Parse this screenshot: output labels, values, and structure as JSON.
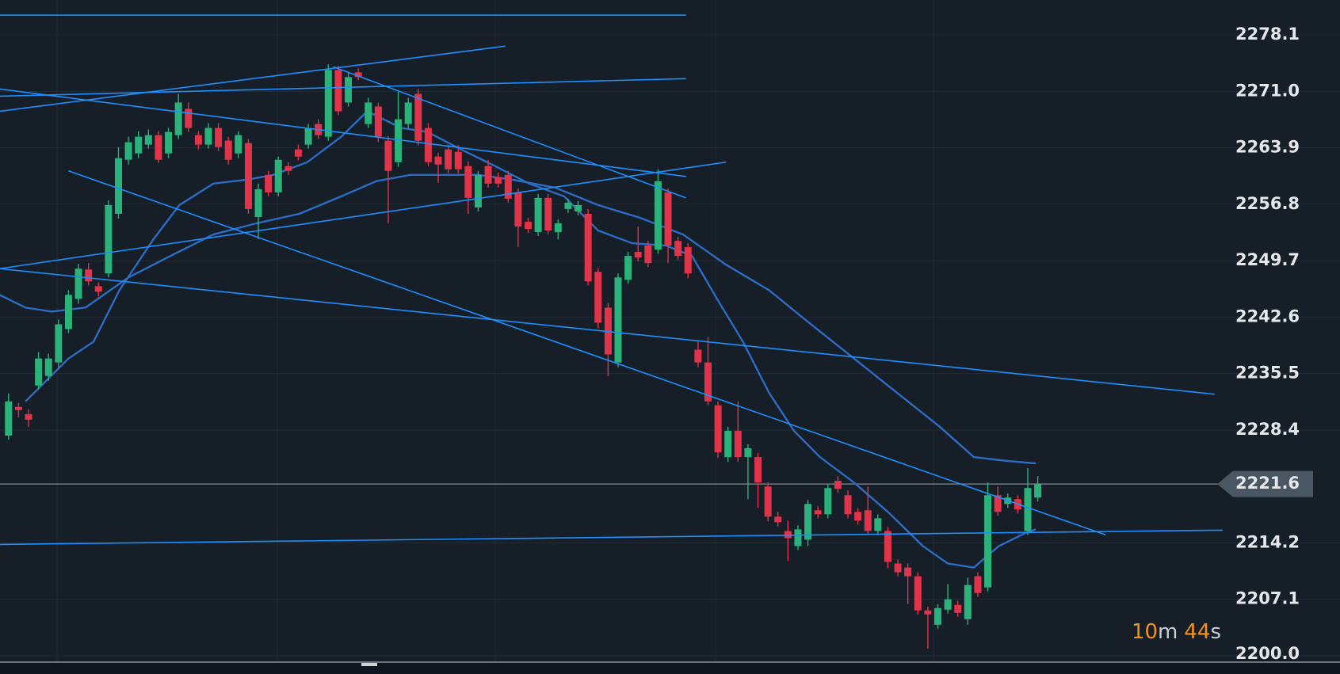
{
  "chart_data": {
    "type": "candlestick",
    "up_color": "#2bb27a",
    "down_color": "#e0344a",
    "open": [
      2227.7,
      2231.3,
      2230.4,
      2234.0,
      2235.2,
      2236.9,
      2241.1,
      2244.9,
      2248.6,
      2246.5,
      2248.1,
      2255.6,
      2262.4,
      2263.2,
      2264.3,
      2265.5,
      2263.2,
      2265.5,
      2268.8,
      2265.5,
      2264.3,
      2266.4,
      2264.8,
      2263.2,
      2264.5,
      2255.2,
      2260.5,
      2258.3,
      2261.6,
      2263.7,
      2264.3,
      2266.9,
      2265.3,
      2273.7,
      2269.6,
      2273.4,
      2266.9,
      2269.1,
      2264.8,
      2262.1,
      2266.9,
      2270.7,
      2266.4,
      2262.8,
      2263.7,
      2263.4,
      2261.6,
      2256.4,
      2261.6,
      2260.2,
      2260.5,
      2258.3,
      2254.6,
      2253.3,
      2257.6,
      2253.3,
      2256.2,
      2255.9,
      2255.6,
      2248.3,
      2243.8,
      2236.9,
      2247.3,
      2250.8,
      2251.6,
      2251.1,
      2258.3,
      2252.2,
      2251.4,
      2238.5,
      2236.9,
      2231.5,
      2225.0,
      2228.3,
      2225.0,
      2225.0,
      2221.3,
      2217.5,
      2215.7,
      2213.8,
      2214.6,
      2218.3,
      2217.8,
      2222.0,
      2220.2,
      2218.1,
      2218.3,
      2215.7,
      2215.7,
      2211.6,
      2211.1,
      2210.0,
      2205.7,
      2203.9,
      2205.8,
      2206.4,
      2204.6,
      2210.0,
      2208.6,
      2220.2,
      2219.1,
      2219.7,
      2215.7,
      2219.9
    ],
    "high": [
      2233.0,
      2231.8,
      2231.0,
      2238.2,
      2238.0,
      2242.3,
      2246.0,
      2249.3,
      2249.4,
      2247.0,
      2257.3,
      2264.0,
      2265.3,
      2266.0,
      2266.2,
      2266.0,
      2266.4,
      2270.7,
      2269.6,
      2266.0,
      2267.0,
      2267.0,
      2265.3,
      2266.0,
      2265.0,
      2259.4,
      2261.0,
      2262.8,
      2262.1,
      2264.3,
      2266.9,
      2267.5,
      2274.4,
      2274.2,
      2273.4,
      2273.9,
      2270.2,
      2269.6,
      2265.4,
      2271.0,
      2270.2,
      2271.3,
      2267.0,
      2263.3,
      2264.3,
      2264.2,
      2262.2,
      2261.0,
      2262.4,
      2260.8,
      2261.0,
      2258.8,
      2255.1,
      2258.1,
      2258.1,
      2254.9,
      2257.5,
      2257.2,
      2256.2,
      2248.8,
      2244.4,
      2248.1,
      2250.8,
      2254.0,
      2252.2,
      2261.2,
      2258.8,
      2252.7,
      2251.9,
      2239.5,
      2240.1,
      2232.0,
      2228.8,
      2232.0,
      2226.6,
      2225.5,
      2221.8,
      2218.1,
      2217.0,
      2216.4,
      2219.6,
      2218.8,
      2221.6,
      2222.6,
      2220.8,
      2218.6,
      2221.3,
      2217.8,
      2216.2,
      2212.1,
      2211.6,
      2210.5,
      2206.2,
      2206.5,
      2209.0,
      2206.9,
      2209.8,
      2210.5,
      2221.8,
      2221.3,
      2220.4,
      2220.2,
      2223.6,
      2222.6
    ],
    "low": [
      2227.2,
      2230.0,
      2228.8,
      2233.5,
      2234.6,
      2236.3,
      2240.6,
      2244.3,
      2246.6,
      2245.2,
      2247.6,
      2255.0,
      2261.8,
      2262.6,
      2263.8,
      2262.0,
      2262.6,
      2265.0,
      2265.9,
      2263.7,
      2263.8,
      2263.5,
      2261.8,
      2262.6,
      2255.6,
      2252.4,
      2257.8,
      2257.8,
      2260.5,
      2262.3,
      2263.8,
      2265.0,
      2264.8,
      2268.0,
      2269.1,
      2272.4,
      2266.4,
      2264.6,
      2254.4,
      2261.5,
      2266.4,
      2264.2,
      2261.6,
      2259.5,
      2260.7,
      2260.7,
      2255.6,
      2255.9,
      2258.9,
      2258.9,
      2257.0,
      2251.4,
      2253.2,
      2252.8,
      2253.0,
      2252.4,
      2255.7,
      2255.4,
      2246.6,
      2241.2,
      2235.2,
      2236.3,
      2246.8,
      2249.6,
      2248.9,
      2250.6,
      2249.4,
      2249.8,
      2247.5,
      2236.3,
      2231.5,
      2224.9,
      2224.4,
      2224.4,
      2219.7,
      2218.6,
      2216.9,
      2216.3,
      2211.9,
      2213.3,
      2213.8,
      2217.3,
      2217.3,
      2220.5,
      2217.3,
      2216.5,
      2215.2,
      2215.2,
      2211.0,
      2210.0,
      2206.5,
      2205.2,
      2200.9,
      2203.4,
      2205.3,
      2204.9,
      2203.9,
      2207.4,
      2208.1,
      2217.6,
      2218.6,
      2217.9,
      2215.2,
      2219.4
    ],
    "close": [
      2232.0,
      2230.9,
      2229.7,
      2237.4,
      2237.4,
      2241.7,
      2245.4,
      2248.7,
      2247.1,
      2245.8,
      2256.7,
      2262.6,
      2264.6,
      2265.3,
      2265.5,
      2262.4,
      2265.9,
      2269.6,
      2266.4,
      2264.3,
      2266.4,
      2264.0,
      2262.4,
      2265.5,
      2256.2,
      2258.7,
      2258.3,
      2262.4,
      2261.0,
      2262.8,
      2266.4,
      2265.5,
      2273.7,
      2268.5,
      2272.8,
      2272.8,
      2269.6,
      2265.3,
      2261.0,
      2267.5,
      2269.6,
      2264.8,
      2262.1,
      2261.8,
      2261.2,
      2261.2,
      2257.6,
      2260.5,
      2259.4,
      2259.4,
      2257.5,
      2254.0,
      2253.7,
      2257.6,
      2253.5,
      2254.4,
      2257.0,
      2256.7,
      2247.1,
      2241.9,
      2237.9,
      2247.6,
      2250.3,
      2250.1,
      2249.4,
      2259.7,
      2251.6,
      2250.3,
      2248.1,
      2236.9,
      2232.0,
      2225.6,
      2228.3,
      2225.0,
      2226.1,
      2221.8,
      2217.5,
      2216.8,
      2214.8,
      2215.9,
      2219.1,
      2217.8,
      2221.1,
      2221.0,
      2217.8,
      2217.0,
      2215.7,
      2217.3,
      2211.8,
      2210.5,
      2210.0,
      2205.7,
      2205.2,
      2206.0,
      2207.1,
      2205.4,
      2208.9,
      2207.9,
      2220.2,
      2218.1,
      2219.9,
      2218.4,
      2221.1,
      2221.6
    ],
    "moving_averages": [
      {
        "color": "#2d6cc4",
        "x": [
          1.7,
          6.0,
          8.5,
          11.1,
          14.5,
          17.1,
          20.5,
          23.9,
          26.5,
          29.9,
          33.3,
          35.9,
          39.3,
          41.9,
          45.3,
          48.7,
          52.1,
          55.6,
          59.0,
          62.4,
          65.8,
          68.4,
          70.9,
          73.5,
          76.1,
          78.6,
          81.2,
          84.6,
          88.0,
          91.5,
          94.0,
          96.6,
          99.1,
          101.7,
          102.8
        ],
        "values": [
          2232.0,
          2237.4,
          2239.5,
          2246.0,
          2252.4,
          2256.7,
          2259.4,
          2259.9,
          2260.5,
          2262.1,
          2265.3,
          2268.5,
          2266.4,
          2265.9,
          2263.7,
          2261.6,
          2259.4,
          2257.8,
          2253.5,
          2251.9,
          2251.6,
          2250.3,
          2244.9,
          2239.5,
          2233.1,
          2228.3,
          2225.0,
          2221.8,
          2218.1,
          2213.8,
          2211.6,
          2211.1,
          2213.8,
          2215.4,
          2215.9
        ]
      },
      {
        "color": "#2d6cc4",
        "x": [
          -0.9,
          1.7,
          4.3,
          7.7,
          12.0,
          16.2,
          20.5,
          24.8,
          29.1,
          33.3,
          36.8,
          40.2,
          43.6,
          47.0,
          50.4,
          54.7,
          59.0,
          63.2,
          67.5,
          71.8,
          76.1,
          80.3,
          84.6,
          88.9,
          93.2,
          96.6,
          100.0,
          102.8
        ],
        "values": [
          2245.4,
          2243.8,
          2243.3,
          2243.8,
          2247.6,
          2250.3,
          2253.0,
          2254.4,
          2255.6,
          2257.8,
          2259.7,
          2260.5,
          2260.5,
          2260.5,
          2259.9,
          2258.9,
          2256.7,
          2255.1,
          2253.0,
          2249.2,
          2246.0,
          2241.7,
          2237.4,
          2233.1,
          2228.8,
          2225.0,
          2224.5,
          2224.2
        ]
      }
    ],
    "trend_color": "#1f8fff",
    "trend_lines": [
      {
        "x": [
          -0.9,
          67.8
        ],
        "values": [
          2280.6,
          2280.6
        ]
      },
      {
        "x": [
          -0.9,
          49.7
        ],
        "values": [
          2268.5,
          2276.7
        ]
      },
      {
        "x": [
          -0.9,
          67.8
        ],
        "values": [
          2270.4,
          2272.6
        ]
      },
      {
        "x": [
          -0.9,
          67.8
        ],
        "values": [
          2271.3,
          2260.3
        ]
      },
      {
        "x": [
          32.5,
          67.8
        ],
        "values": [
          2274.1,
          2257.6
        ]
      },
      {
        "x": [
          -0.9,
          71.8
        ],
        "values": [
          2248.7,
          2262.1
        ]
      },
      {
        "x": [
          6.0,
          109.8
        ],
        "values": [
          2261.0,
          2215.2
        ]
      },
      {
        "x": [
          -0.9,
          120.7
        ],
        "values": [
          2248.7,
          2232.9
        ]
      },
      {
        "x": [
          -0.9,
          121.5
        ],
        "values": [
          2214.0,
          2215.8
        ]
      }
    ],
    "ylim": [
      2198.8,
      2282.5
    ],
    "yticks": [
      {
        "value": 2200,
        "label": "2200.0"
      },
      2207.1,
      2214.2,
      2228.4,
      2235.5,
      2242.6,
      2249.7,
      2256.8,
      2263.9,
      {
        "value": 2271,
        "label": "2271.0"
      },
      2278.1
    ],
    "grid": true,
    "last_price": 2221.6,
    "countdown": [
      {
        "value": 10,
        "unit": "m"
      },
      {
        "value": 44,
        "unit": "s"
      }
    ]
  }
}
